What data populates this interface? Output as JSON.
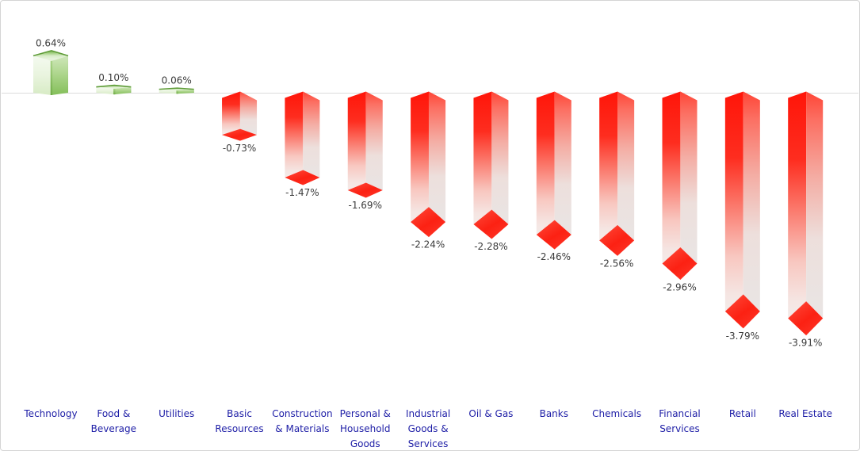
{
  "chart_data": {
    "type": "bar",
    "variant": "3d-column",
    "title": "",
    "xlabel": "",
    "ylabel": "",
    "ylim": [
      -4.5,
      1.2
    ],
    "grid": false,
    "legend": false,
    "baseline": 0,
    "categories": [
      "Technology",
      "Food & Beverage",
      "Utilities",
      "Basic Resources",
      "Construction & Materials",
      "Personal & Household Goods",
      "Industrial Goods & Services",
      "Oil & Gas",
      "Banks",
      "Chemicals",
      "Financial Services",
      "Retail",
      "Real Estate"
    ],
    "values": [
      0.64,
      0.1,
      0.06,
      -0.73,
      -1.47,
      -1.69,
      -2.24,
      -2.28,
      -2.46,
      -2.56,
      -2.96,
      -3.79,
      -3.91
    ],
    "value_labels": [
      "0.64%",
      "0.10%",
      "0.06%",
      "-0.73%",
      "-1.47%",
      "-1.69%",
      "-2.24%",
      "-2.28%",
      "-2.46%",
      "-2.56%",
      "-2.96%",
      "-3.79%",
      "-3.91%"
    ],
    "colors": {
      "positive": "#8cc765",
      "negative": "#fd2113",
      "value_label": "#3b3b3b",
      "category_label": "#1d1da6",
      "axis_line": "#dcdcdc",
      "panel_border": "#d4d4d4"
    }
  }
}
